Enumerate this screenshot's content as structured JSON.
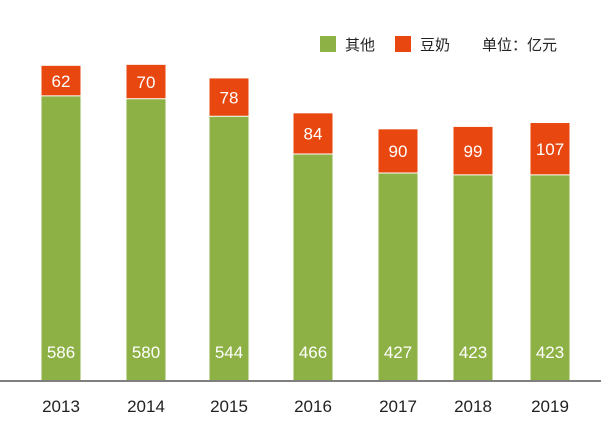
{
  "chart_data": {
    "type": "bar",
    "stacked": true,
    "categories": [
      "2013",
      "2014",
      "2015",
      "2016",
      "2017",
      "2018",
      "2019"
    ],
    "series": [
      {
        "name": "其他",
        "color": "#8db144",
        "values": [
          586,
          580,
          544,
          466,
          427,
          423,
          423
        ]
      },
      {
        "name": "豆奶",
        "color": "#e8470f",
        "values": [
          62,
          70,
          78,
          84,
          90,
          99,
          107
        ]
      }
    ],
    "unit": "单位：亿元",
    "title": "",
    "xlabel": "",
    "ylabel": "",
    "ylim": [
      0,
      660
    ],
    "grid": false,
    "legend": "top-right"
  }
}
